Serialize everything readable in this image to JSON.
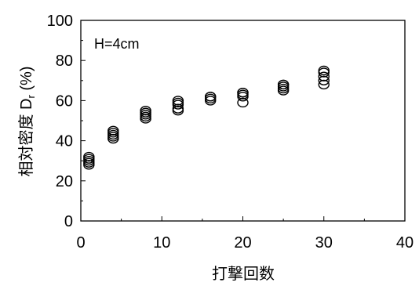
{
  "chart_data": {
    "type": "scatter",
    "annotation": "H=4cm",
    "xlabel": "打撃回数",
    "ylabel_main": "相対密度 D",
    "ylabel_sub": "r",
    "ylabel_unit": " (%)",
    "xlim": [
      0,
      40
    ],
    "ylim": [
      0,
      100
    ],
    "xticks": [
      0,
      10,
      20,
      30,
      40
    ],
    "yticks": [
      0,
      20,
      40,
      60,
      80,
      100
    ],
    "grid": false,
    "marker": "open-circle",
    "series": [
      {
        "points": [
          [
            1,
            28
          ],
          [
            1,
            29
          ],
          [
            1,
            30
          ],
          [
            1,
            31
          ],
          [
            1,
            32
          ],
          [
            4,
            41
          ],
          [
            4,
            42
          ],
          [
            4,
            43
          ],
          [
            4,
            44
          ],
          [
            4,
            45
          ],
          [
            8,
            51
          ],
          [
            8,
            52
          ],
          [
            8,
            53
          ],
          [
            8,
            54
          ],
          [
            8,
            55
          ],
          [
            12,
            55
          ],
          [
            12,
            56
          ],
          [
            12,
            58
          ],
          [
            12,
            59
          ],
          [
            12,
            60
          ],
          [
            16,
            60
          ],
          [
            16,
            61
          ],
          [
            16,
            62
          ],
          [
            16,
            62
          ],
          [
            20,
            59
          ],
          [
            20,
            62
          ],
          [
            20,
            63
          ],
          [
            20,
            64
          ],
          [
            20,
            64
          ],
          [
            25,
            65
          ],
          [
            25,
            66
          ],
          [
            25,
            67
          ],
          [
            25,
            68
          ],
          [
            25,
            68
          ],
          [
            30,
            68
          ],
          [
            30,
            70
          ],
          [
            30,
            72
          ],
          [
            30,
            74
          ],
          [
            30,
            75
          ]
        ]
      }
    ]
  }
}
